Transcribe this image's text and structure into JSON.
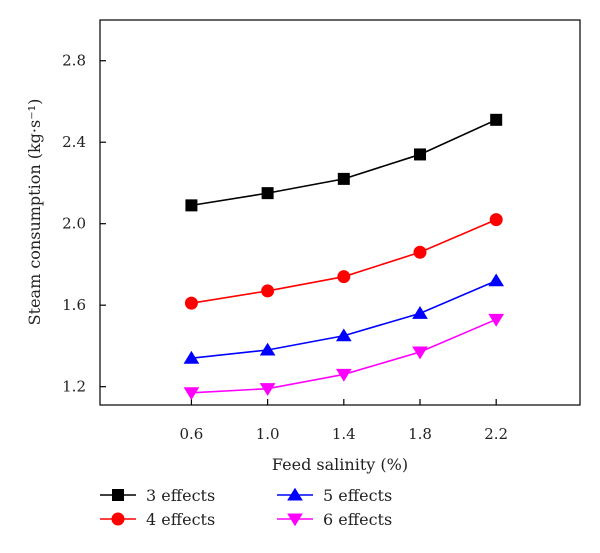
{
  "chart_data": {
    "type": "line",
    "xlabel": "Feed salinity (%)",
    "ylabel": "Steam consumption (kg·s⁻¹)",
    "x": [
      0.6,
      1.0,
      1.4,
      1.8,
      2.2
    ],
    "x_tick_labels": [
      "0.6",
      "1.0",
      "1.4",
      "1.8",
      "2.2"
    ],
    "y_ticks": [
      1.2,
      1.6,
      2.0,
      2.4,
      2.8
    ],
    "y_tick_labels": [
      "1.2",
      "1.6",
      "2.0",
      "2.4",
      "2.8"
    ],
    "xlim": [
      0.12,
      2.64
    ],
    "ylim": [
      1.11,
      3.0
    ],
    "grid": false,
    "legend_position": "bottom",
    "series": [
      {
        "name": "3 effects",
        "values": [
          2.09,
          2.15,
          2.22,
          2.34,
          2.51
        ],
        "color": "#000000",
        "marker": "square"
      },
      {
        "name": "4 effects",
        "values": [
          1.61,
          1.67,
          1.74,
          1.86,
          2.02
        ],
        "color": "#ff0000",
        "marker": "circle"
      },
      {
        "name": "5 effects",
        "values": [
          1.34,
          1.38,
          1.45,
          1.56,
          1.72
        ],
        "color": "#0000ff",
        "marker": "triangle-up"
      },
      {
        "name": "6 effects",
        "values": [
          1.17,
          1.19,
          1.26,
          1.37,
          1.53
        ],
        "color": "#ff00ff",
        "marker": "triangle-down"
      }
    ]
  }
}
